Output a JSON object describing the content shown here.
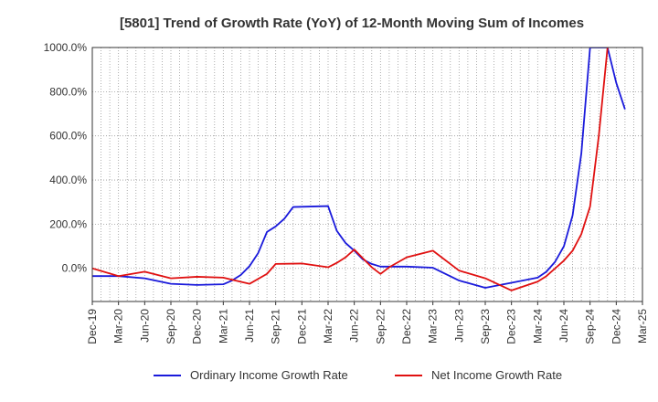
{
  "chart_data": {
    "type": "line",
    "title": "[5801]  Trend of Growth Rate (YoY) of 12-Month Moving Sum of Incomes",
    "xlabel": "",
    "ylabel": "",
    "ylim": [
      -150,
      1000
    ],
    "yticks": [
      "1000.0%",
      "800.0%",
      "600.0%",
      "400.0%",
      "200.0%",
      "0.0%"
    ],
    "ytick_values": [
      1000,
      800,
      600,
      400,
      200,
      0
    ],
    "xticks": [
      "Dec-19",
      "Mar-20",
      "Jun-20",
      "Sep-20",
      "Dec-20",
      "Mar-21",
      "Jun-21",
      "Sep-21",
      "Dec-21",
      "Mar-22",
      "Jun-22",
      "Sep-22",
      "Dec-22",
      "Mar-23",
      "Jun-23",
      "Sep-23",
      "Dec-23",
      "Mar-24",
      "Jun-24",
      "Sep-24",
      "Dec-24",
      "Mar-25"
    ],
    "grid": true,
    "legend_position": "bottom",
    "colors": {
      "ordinary": "#1a1adb",
      "net": "#e01010"
    },
    "series": [
      {
        "name": "Ordinary Income Growth Rate",
        "color": "#1a1adb",
        "values": [
          {
            "x": "Dec-19",
            "y": -35
          },
          {
            "x": "Mar-20",
            "y": -35
          },
          {
            "x": "Jun-20",
            "y": -45
          },
          {
            "x": "Sep-20",
            "y": -70
          },
          {
            "x": "Dec-20",
            "y": -75
          },
          {
            "x": "Mar-21",
            "y": -72
          },
          {
            "x": "Apr-21",
            "y": -55
          },
          {
            "x": "May-21",
            "y": -30
          },
          {
            "x": "Jun-21",
            "y": 10
          },
          {
            "x": "Jul-21",
            "y": 70
          },
          {
            "x": "Aug-21",
            "y": 165
          },
          {
            "x": "Sep-21",
            "y": 190
          },
          {
            "x": "Oct-21",
            "y": 225
          },
          {
            "x": "Nov-21",
            "y": 278
          },
          {
            "x": "Jan-22",
            "y": 280
          },
          {
            "x": "Mar-22",
            "y": 282
          },
          {
            "x": "Apr-22",
            "y": 170
          },
          {
            "x": "May-22",
            "y": 115
          },
          {
            "x": "Jun-22",
            "y": 80
          },
          {
            "x": "Jul-22",
            "y": 40
          },
          {
            "x": "Aug-22",
            "y": 20
          },
          {
            "x": "Sep-22",
            "y": 8
          },
          {
            "x": "Dec-22",
            "y": 8
          },
          {
            "x": "Mar-23",
            "y": 3
          },
          {
            "x": "Jun-23",
            "y": -55
          },
          {
            "x": "Sep-23",
            "y": -88
          },
          {
            "x": "Dec-23",
            "y": -65
          },
          {
            "x": "Mar-24",
            "y": -42
          },
          {
            "x": "Apr-24",
            "y": -15
          },
          {
            "x": "May-24",
            "y": 30
          },
          {
            "x": "Jun-24",
            "y": 100
          },
          {
            "x": "Jul-24",
            "y": 240
          },
          {
            "x": "Aug-24",
            "y": 520
          },
          {
            "x": "Sep-24",
            "y": 1000
          },
          {
            "x": "Oct-24",
            "y": 1000
          },
          {
            "x": "Nov-24",
            "y": 1000
          },
          {
            "x": "Dec-24",
            "y": 840
          },
          {
            "x": "Jan-25",
            "y": 720
          }
        ]
      },
      {
        "name": "Net Income Growth Rate",
        "color": "#e01010",
        "values": [
          {
            "x": "Dec-19",
            "y": 0
          },
          {
            "x": "Mar-20",
            "y": -35
          },
          {
            "x": "Jun-20",
            "y": -15
          },
          {
            "x": "Sep-20",
            "y": -45
          },
          {
            "x": "Dec-20",
            "y": -38
          },
          {
            "x": "Mar-21",
            "y": -42
          },
          {
            "x": "Jun-21",
            "y": -70
          },
          {
            "x": "Aug-21",
            "y": -25
          },
          {
            "x": "Sep-21",
            "y": 20
          },
          {
            "x": "Dec-21",
            "y": 22
          },
          {
            "x": "Mar-22",
            "y": 5
          },
          {
            "x": "Apr-22",
            "y": 25
          },
          {
            "x": "May-22",
            "y": 50
          },
          {
            "x": "Jun-22",
            "y": 85
          },
          {
            "x": "Jul-22",
            "y": 45
          },
          {
            "x": "Aug-22",
            "y": 5
          },
          {
            "x": "Sep-22",
            "y": -25
          },
          {
            "x": "Oct-22",
            "y": 5
          },
          {
            "x": "Dec-22",
            "y": 50
          },
          {
            "x": "Mar-23",
            "y": 80
          },
          {
            "x": "Jun-23",
            "y": -10
          },
          {
            "x": "Sep-23",
            "y": -45
          },
          {
            "x": "Dec-23",
            "y": -100
          },
          {
            "x": "Mar-24",
            "y": -60
          },
          {
            "x": "Apr-24",
            "y": -35
          },
          {
            "x": "May-24",
            "y": 0
          },
          {
            "x": "Jun-24",
            "y": 35
          },
          {
            "x": "Jul-24",
            "y": 80
          },
          {
            "x": "Aug-24",
            "y": 155
          },
          {
            "x": "Sep-24",
            "y": 280
          },
          {
            "x": "Oct-24",
            "y": 600
          },
          {
            "x": "Nov-24",
            "y": 1000
          }
        ]
      }
    ]
  }
}
